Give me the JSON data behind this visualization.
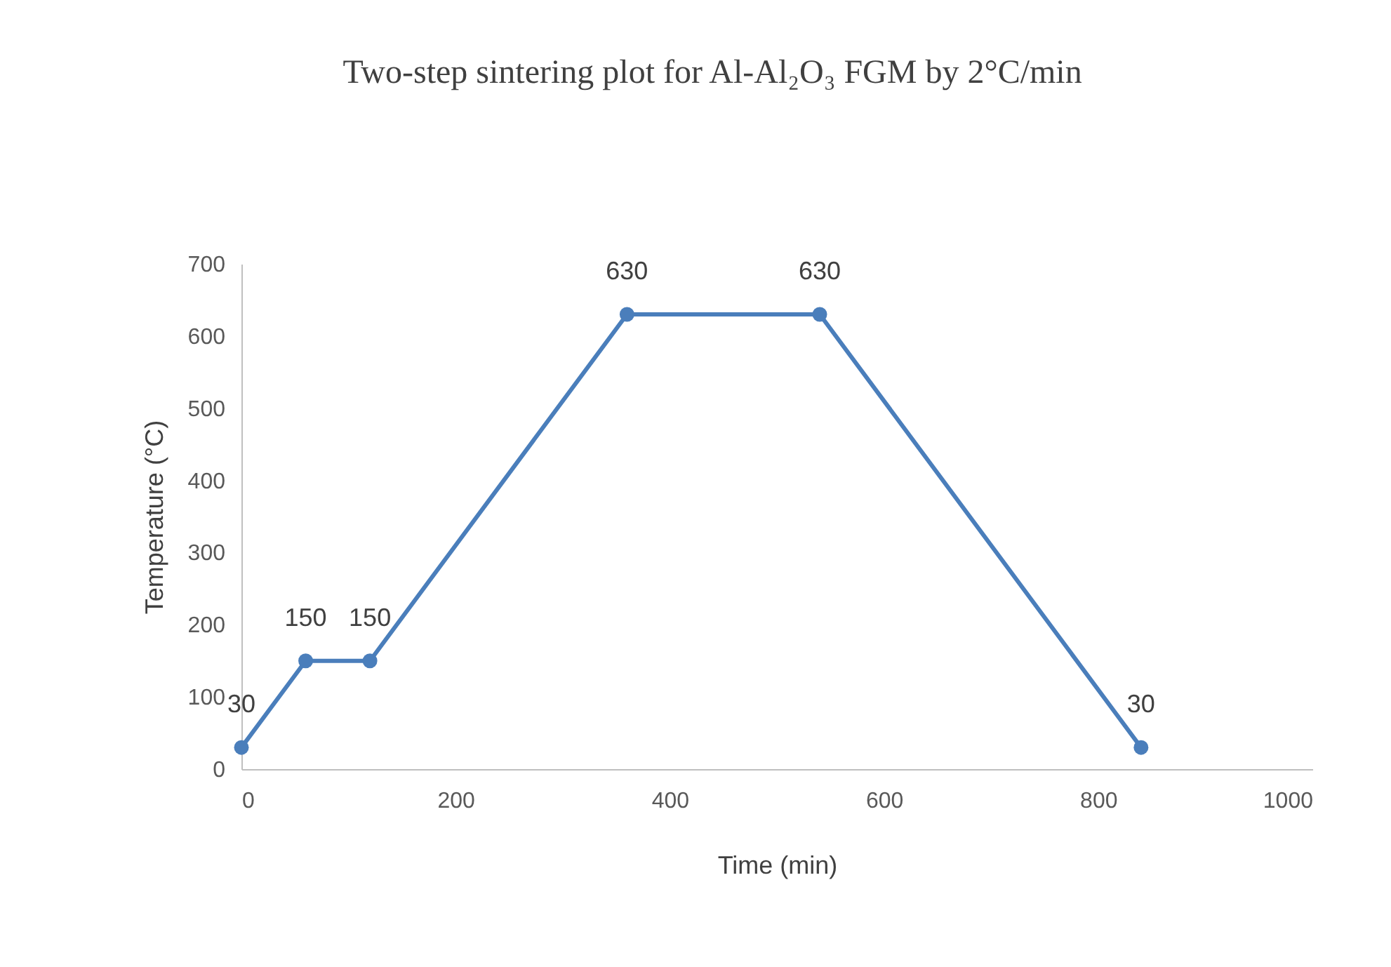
{
  "chart_data": {
    "type": "line",
    "title": "Two-step sintering plot for Al-Al₂O₃ FGM by 2°C/min",
    "xlabel": "Time (min)",
    "ylabel": "Temperature (°C)",
    "x": [
      0,
      60,
      120,
      360,
      540,
      840
    ],
    "series": [
      {
        "color": "#4a7ebb",
        "values": [
          30,
          150,
          150,
          630,
          630,
          30
        ]
      }
    ],
    "xlim": [
      0,
      1000
    ],
    "xticks": [
      0,
      200,
      400,
      600,
      800,
      1000
    ],
    "ylim": [
      0,
      700
    ],
    "yticks": [
      0,
      100,
      200,
      300,
      400,
      500,
      600,
      700
    ],
    "grid": false,
    "marker": "circle",
    "line_style": "solid",
    "data_labels": true
  }
}
